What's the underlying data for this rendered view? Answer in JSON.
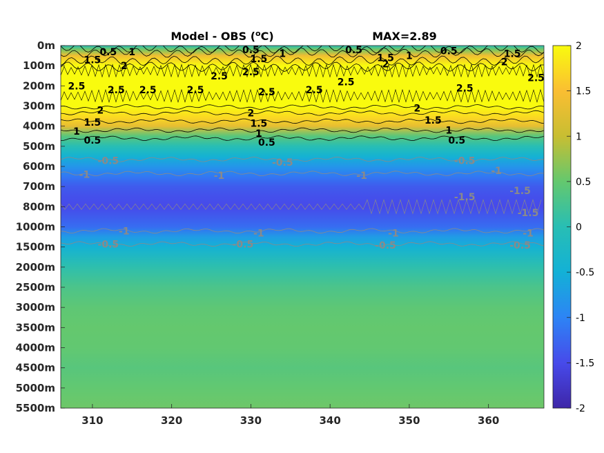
{
  "chart_data": {
    "type": "heatmap",
    "title": "Model - OBS (°C)",
    "title_main": "Model - OBS (",
    "title_sup": "o",
    "title_end": "C)",
    "annotation": "MAX=2.89",
    "x_ticks": [
      310,
      320,
      330,
      340,
      350,
      360
    ],
    "xlim": [
      306,
      367
    ],
    "y_ticks": [
      "0m",
      "100m",
      "200m",
      "300m",
      "400m",
      "500m",
      "600m",
      "700m",
      "800m",
      "1000m",
      "1500m",
      "2000m",
      "2500m",
      "3000m",
      "3500m",
      "4000m",
      "4500m",
      "5000m",
      "5500m"
    ],
    "colorbar": {
      "range": [
        -2,
        2
      ],
      "ticks": [
        "2",
        "1.5",
        "1",
        "0.5",
        "0",
        "-0.5",
        "-1",
        "-1.5",
        "-2"
      ],
      "colormap": "parula"
    },
    "depth_profile": [
      {
        "level": 0,
        "value": 0.0
      },
      {
        "level": 0.2,
        "value": 0.6
      },
      {
        "level": 0.5,
        "value": 1.4
      },
      {
        "level": 1,
        "value": 2.2
      },
      {
        "level": 2,
        "value": 2.7
      },
      {
        "level": 3,
        "value": 2.4
      },
      {
        "level": 3.6,
        "value": 1.7
      },
      {
        "level": 4,
        "value": 1.3
      },
      {
        "level": 4.5,
        "value": 0.4
      },
      {
        "level": 5,
        "value": 0.0
      },
      {
        "level": 5.5,
        "value": -0.45
      },
      {
        "level": 6,
        "value": -0.8
      },
      {
        "level": 6.5,
        "value": -1.1
      },
      {
        "level": 7,
        "value": -1.35
      },
      {
        "level": 7.5,
        "value": -1.45
      },
      {
        "level": 8,
        "value": -1.5
      },
      {
        "level": 8.5,
        "value": -1.35
      },
      {
        "level": 9,
        "value": -1.2
      },
      {
        "level": 9.5,
        "value": -0.75
      },
      {
        "level": 10,
        "value": -0.45
      },
      {
        "level": 11,
        "value": 0.05
      },
      {
        "level": 12,
        "value": 0.3
      },
      {
        "level": 13,
        "value": 0.45
      },
      {
        "level": 14,
        "value": 0.5
      },
      {
        "level": 15,
        "value": 0.48
      },
      {
        "level": 16,
        "value": 0.4
      },
      {
        "level": 17,
        "value": 0.48
      },
      {
        "level": 18,
        "value": 0.55
      }
    ],
    "contour_labels": [
      {
        "text": "0.5",
        "x": 312,
        "level": 0.3,
        "color": "#000"
      },
      {
        "text": "1",
        "x": 315,
        "level": 0.3,
        "color": "#000"
      },
      {
        "text": "1.5",
        "x": 310,
        "level": 0.7,
        "color": "#000"
      },
      {
        "text": "2",
        "x": 314,
        "level": 1.0,
        "color": "#000"
      },
      {
        "text": "2.5",
        "x": 308,
        "level": 2.0,
        "color": "#000"
      },
      {
        "text": "2.5",
        "x": 313,
        "level": 2.2,
        "color": "#000"
      },
      {
        "text": "2.5",
        "x": 317,
        "level": 2.2,
        "color": "#000"
      },
      {
        "text": "2.5",
        "x": 323,
        "level": 2.2,
        "color": "#000"
      },
      {
        "text": "2.5",
        "x": 326,
        "level": 1.5,
        "color": "#000"
      },
      {
        "text": "2.5",
        "x": 330,
        "level": 1.3,
        "color": "#000"
      },
      {
        "text": "0.5",
        "x": 330,
        "level": 0.2,
        "color": "#000"
      },
      {
        "text": "1.5",
        "x": 331,
        "level": 0.65,
        "color": "#000"
      },
      {
        "text": "1",
        "x": 334,
        "level": 0.4,
        "color": "#000"
      },
      {
        "text": "2.5",
        "x": 332,
        "level": 2.3,
        "color": "#000"
      },
      {
        "text": "2.5",
        "x": 338,
        "level": 2.2,
        "color": "#000"
      },
      {
        "text": "2.5",
        "x": 342,
        "level": 1.8,
        "color": "#000"
      },
      {
        "text": "0.5",
        "x": 343,
        "level": 0.2,
        "color": "#000"
      },
      {
        "text": "1.5",
        "x": 347,
        "level": 0.6,
        "color": "#000"
      },
      {
        "text": "1",
        "x": 350,
        "level": 0.5,
        "color": "#000"
      },
      {
        "text": "2",
        "x": 347,
        "level": 0.9,
        "color": "#000"
      },
      {
        "text": "0.5",
        "x": 355,
        "level": 0.25,
        "color": "#000"
      },
      {
        "text": "2.5",
        "x": 357,
        "level": 2.1,
        "color": "#000"
      },
      {
        "text": "1.5",
        "x": 363,
        "level": 0.4,
        "color": "#000"
      },
      {
        "text": "2",
        "x": 362,
        "level": 0.8,
        "color": "#000"
      },
      {
        "text": "2.5",
        "x": 366,
        "level": 1.6,
        "color": "#000"
      },
      {
        "text": "2",
        "x": 311,
        "level": 3.2,
        "color": "#000"
      },
      {
        "text": "2",
        "x": 330,
        "level": 3.35,
        "color": "#000"
      },
      {
        "text": "2",
        "x": 351,
        "level": 3.1,
        "color": "#000"
      },
      {
        "text": "1.5",
        "x": 310,
        "level": 3.8,
        "color": "#000"
      },
      {
        "text": "1.5",
        "x": 331,
        "level": 3.85,
        "color": "#000"
      },
      {
        "text": "1.5",
        "x": 353,
        "level": 3.7,
        "color": "#000"
      },
      {
        "text": "1",
        "x": 308,
        "level": 4.25,
        "color": "#000"
      },
      {
        "text": "1",
        "x": 331,
        "level": 4.35,
        "color": "#000"
      },
      {
        "text": "1",
        "x": 355,
        "level": 4.2,
        "color": "#000"
      },
      {
        "text": "0.5",
        "x": 310,
        "level": 4.7,
        "color": "#000"
      },
      {
        "text": "0.5",
        "x": 332,
        "level": 4.8,
        "color": "#000"
      },
      {
        "text": "0.5",
        "x": 356,
        "level": 4.7,
        "color": "#000"
      },
      {
        "text": "-0.5",
        "x": 312,
        "level": 5.7,
        "color": "#8a8a8a"
      },
      {
        "text": "-0.5",
        "x": 334,
        "level": 5.8,
        "color": "#8a8a8a"
      },
      {
        "text": "-0.5",
        "x": 357,
        "level": 5.7,
        "color": "#8a8a8a"
      },
      {
        "text": "-1",
        "x": 309,
        "level": 6.4,
        "color": "#8a8a8a"
      },
      {
        "text": "-1",
        "x": 326,
        "level": 6.45,
        "color": "#8a8a8a"
      },
      {
        "text": "-1",
        "x": 344,
        "level": 6.45,
        "color": "#8a8a8a"
      },
      {
        "text": "-1",
        "x": 361,
        "level": 6.2,
        "color": "#8a8a8a"
      },
      {
        "text": "-1.5",
        "x": 357,
        "level": 7.5,
        "color": "#8a8a8a"
      },
      {
        "text": "-1.5",
        "x": 364,
        "level": 7.2,
        "color": "#8a8a8a"
      },
      {
        "text": "-1.5",
        "x": 365,
        "level": 8.3,
        "color": "#8a8a8a"
      },
      {
        "text": "-1",
        "x": 314,
        "level": 9.2,
        "color": "#8a8a8a"
      },
      {
        "text": "-1",
        "x": 331,
        "level": 9.3,
        "color": "#8a8a8a"
      },
      {
        "text": "-1",
        "x": 348,
        "level": 9.3,
        "color": "#8a8a8a"
      },
      {
        "text": "-1",
        "x": 365,
        "level": 9.3,
        "color": "#8a8a8a"
      },
      {
        "text": "-0.5",
        "x": 312,
        "level": 9.85,
        "color": "#8a8a8a"
      },
      {
        "text": "-0.5",
        "x": 329,
        "level": 9.85,
        "color": "#8a8a8a"
      },
      {
        "text": "-0.5",
        "x": 347,
        "level": 9.9,
        "color": "#8a8a8a"
      },
      {
        "text": "-0.5",
        "x": 364,
        "level": 9.9,
        "color": "#8a8a8a"
      }
    ]
  }
}
